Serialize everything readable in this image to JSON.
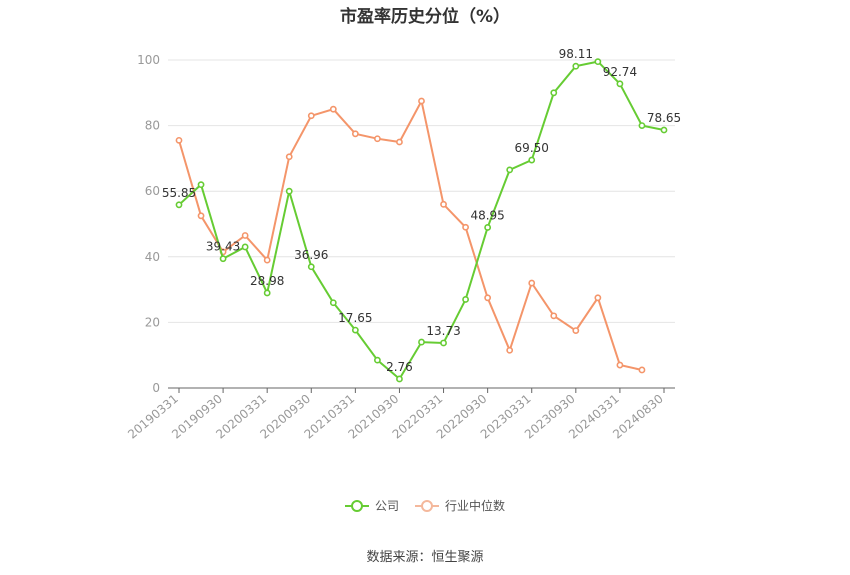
{
  "chart_data": {
    "type": "line",
    "title": "市盈率历史分位（%）",
    "xlabel": "",
    "ylabel": "",
    "ylim": [
      0,
      100
    ],
    "y_ticks": [
      "0",
      "20",
      "40",
      "60",
      "80",
      "100"
    ],
    "grid": true,
    "legend_position": "bottom",
    "x": [
      "20190331",
      "20190630",
      "20190930",
      "20191231",
      "20200331",
      "20200630",
      "20200930",
      "20201231",
      "20210331",
      "20210630",
      "20210930",
      "20211231",
      "20220331",
      "20220630",
      "20220930",
      "20221231",
      "20230331",
      "20230630",
      "20230930",
      "20231231",
      "20240331",
      "20240630",
      "20240830"
    ],
    "x_tick_labels": [
      "20190331",
      "20190930",
      "20200331",
      "20200930",
      "20210331",
      "20210930",
      "20220331",
      "20220930",
      "20230331",
      "20230930",
      "20240331",
      "20240830"
    ],
    "series": [
      {
        "name": "公司",
        "color": "#66cc33",
        "values": [
          55.85,
          62.0,
          39.43,
          43.0,
          28.98,
          60.0,
          36.96,
          26.0,
          17.65,
          8.5,
          2.76,
          14.0,
          13.73,
          27.0,
          48.95,
          66.5,
          69.5,
          90.0,
          98.11,
          99.5,
          92.74,
          80.0,
          78.65
        ],
        "labels": [
          "55.85",
          "",
          "39.43",
          "",
          "28.98",
          "",
          "36.96",
          "",
          "17.65",
          "",
          "2.76",
          "",
          "13.73",
          "",
          "48.95",
          "",
          "69.50",
          "",
          "98.11",
          "",
          "92.74",
          "",
          "78.65"
        ]
      },
      {
        "name": "行业中位数",
        "color": "#f4956a",
        "values": [
          75.5,
          52.5,
          41.5,
          46.5,
          39.0,
          70.5,
          83.0,
          85.0,
          77.5,
          76.0,
          75.0,
          87.5,
          56.0,
          49.0,
          27.5,
          11.5,
          32.0,
          22.0,
          17.5,
          27.5,
          7.0,
          5.5,
          null
        ]
      }
    ]
  },
  "source_text": "数据来源：恒生聚源"
}
